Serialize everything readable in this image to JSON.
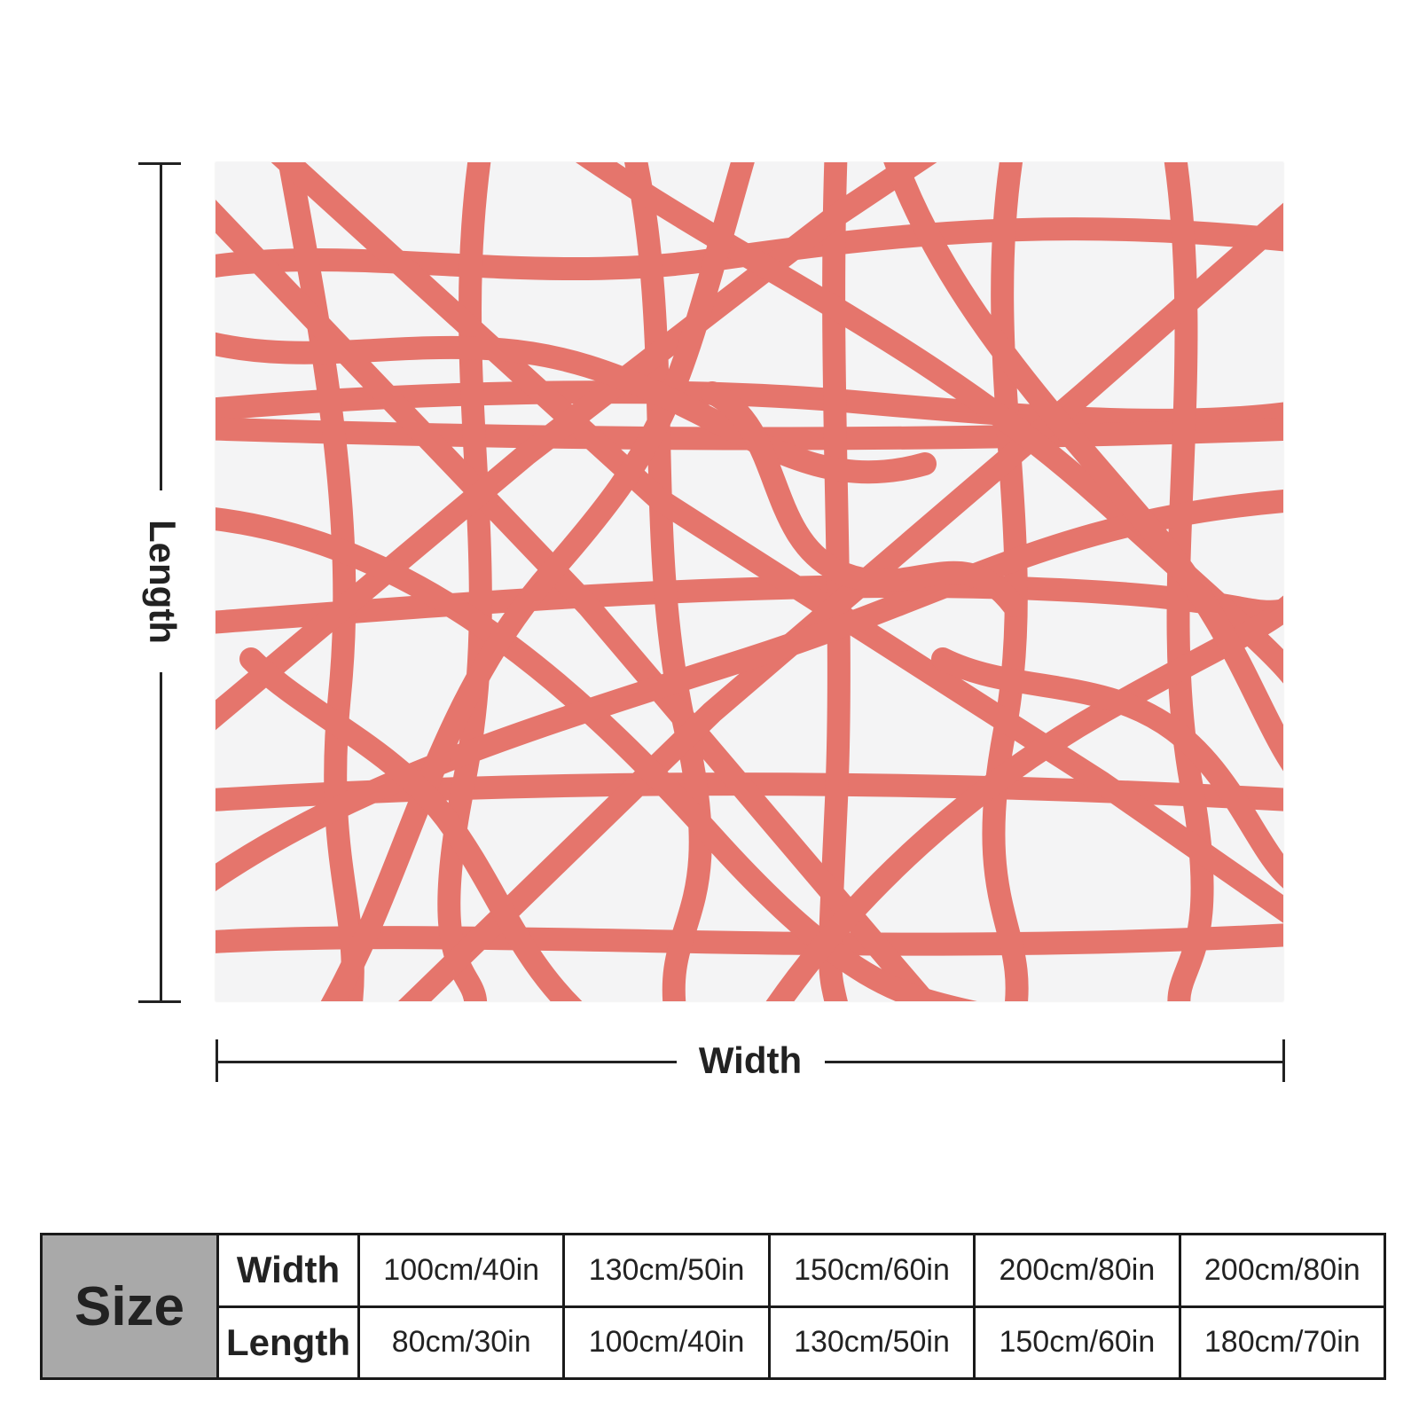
{
  "product": {
    "pattern_name": "coral-abstract-lines",
    "pattern_color": "#e5756c",
    "background_color": "#f4f4f5"
  },
  "diagram": {
    "length_label": "Length",
    "width_label": "Width"
  },
  "size_table": {
    "header": "Size",
    "row_labels": [
      "Width",
      "Length"
    ],
    "widths": [
      "100cm/40in",
      "130cm/50in",
      "150cm/60in",
      "200cm/80in",
      "200cm/80in"
    ],
    "lengths": [
      "80cm/30in",
      "100cm/40in",
      "130cm/50in",
      "150cm/60in",
      "180cm/70in"
    ]
  }
}
